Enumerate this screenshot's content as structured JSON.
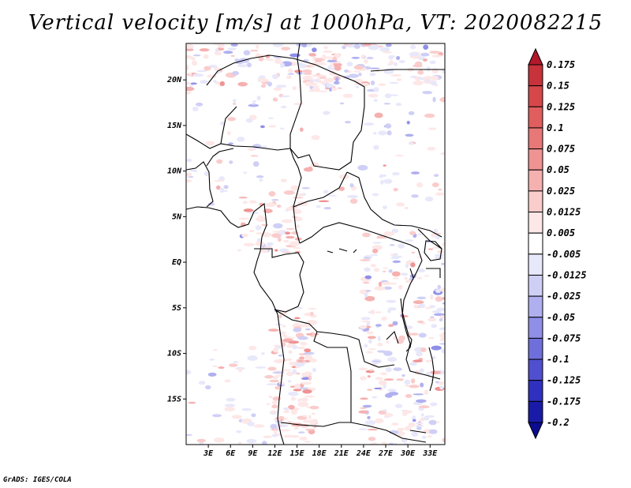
{
  "title": "Vertical velocity [m/s] at 1000hPa, VT: 2020082215",
  "footer": "GrADS: IGES/COLA",
  "map": {
    "lat_labels": [
      "20N",
      "15N",
      "10N",
      "5N",
      "EQ",
      "5S",
      "10S",
      "15S"
    ],
    "lon_labels": [
      "3E",
      "6E",
      "9E",
      "12E",
      "15E",
      "18E",
      "21E",
      "24E",
      "27E",
      "30E",
      "33E"
    ]
  },
  "colorbar": {
    "labels": [
      "0.175",
      "0.15",
      "0.125",
      "0.1",
      "0.075",
      "0.05",
      "0.025",
      "0.0125",
      "0.005",
      "-0.005",
      "-0.0125",
      "-0.025",
      "-0.05",
      "-0.075",
      "-0.1",
      "-0.125",
      "-0.175",
      "-0.2"
    ],
    "colors": [
      "#b2182b",
      "#c8323a",
      "#d6474a",
      "#e05e5e",
      "#e87777",
      "#ef9393",
      "#f5b0b0",
      "#facccc",
      "#fde7e7",
      "#ffffff",
      "#e8e8fb",
      "#cfcff6",
      "#afaff0",
      "#8f8fe8",
      "#6f6fdc",
      "#4f4fcf",
      "#3030c0",
      "#1a1aa8",
      "#0c0c90"
    ]
  }
}
